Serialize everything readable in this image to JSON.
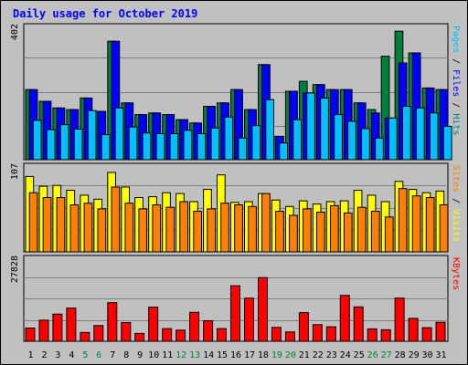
{
  "chart_data": [
    {
      "type": "bar",
      "panel": "pages-files-hits",
      "title": "Daily usage for October 2019",
      "ymax_label": "402",
      "ylim": [
        0,
        402
      ],
      "categories": [
        "1",
        "2",
        "3",
        "4",
        "5",
        "6",
        "7",
        "8",
        "9",
        "10",
        "11",
        "12",
        "13",
        "14",
        "15",
        "16",
        "17",
        "18",
        "19",
        "20",
        "21",
        "22",
        "23",
        "24",
        "25",
        "26",
        "27",
        "28",
        "29",
        "30",
        "31"
      ],
      "weekend_days": [
        "5",
        "6",
        "12",
        "13",
        "19",
        "20",
        "26",
        "27"
      ],
      "side_label_parts": [
        "Pages",
        " / ",
        "Files",
        " / ",
        "Hits"
      ],
      "series": [
        {
          "name": "Hits",
          "color": "#008040",
          "values": [
            210,
            175,
            155,
            150,
            185,
            145,
            355,
            170,
            135,
            140,
            135,
            120,
            110,
            160,
            170,
            210,
            150,
            285,
            70,
            205,
            235,
            225,
            210,
            210,
            170,
            150,
            310,
            385,
            320,
            215,
            210
          ]
        },
        {
          "name": "Files",
          "color": "#0000ff",
          "values": [
            210,
            175,
            155,
            150,
            185,
            145,
            355,
            170,
            135,
            140,
            135,
            120,
            110,
            160,
            170,
            210,
            150,
            285,
            70,
            205,
            200,
            225,
            210,
            210,
            170,
            140,
            125,
            290,
            320,
            215,
            210
          ]
        },
        {
          "name": "Pages",
          "color": "#00c0ff",
          "values": [
            118,
            90,
            105,
            92,
            147,
            75,
            155,
            98,
            80,
            78,
            78,
            88,
            78,
            95,
            128,
            65,
            102,
            180,
            50,
            120,
            200,
            185,
            135,
            115,
            93,
            65,
            125,
            160,
            155,
            140,
            100
          ]
        }
      ]
    },
    {
      "type": "bar",
      "panel": "sites-visits",
      "ymax_label": "107",
      "ylim": [
        0,
        107
      ],
      "side_label_parts": [
        "Sites",
        " / ",
        "Visits"
      ],
      "series": [
        {
          "name": "Visits",
          "color": "#ffff00",
          "values": [
            93,
            81,
            82,
            76,
            70,
            65,
            98,
            80,
            67,
            68,
            73,
            72,
            62,
            77,
            95,
            61,
            62,
            72,
            64,
            56,
            63,
            59,
            62,
            63,
            76,
            70,
            62,
            87,
            77,
            73,
            75
          ]
        },
        {
          "name": "Sites",
          "color": "#ff8000",
          "values": [
            73,
            67,
            67,
            58,
            60,
            53,
            80,
            60,
            53,
            58,
            55,
            62,
            50,
            53,
            60,
            58,
            56,
            72,
            50,
            45,
            53,
            49,
            57,
            48,
            55,
            50,
            43,
            78,
            69,
            67,
            58
          ]
        }
      ]
    },
    {
      "type": "bar",
      "panel": "kbytes",
      "ymax_label": "27828",
      "ylim": [
        0,
        27828
      ],
      "side_label_parts": [
        "KBytes"
      ],
      "series": [
        {
          "name": "KBytes",
          "color": "#ff0000",
          "values": [
            4400,
            7000,
            9000,
            11000,
            2900,
            5200,
            12800,
            6200,
            2600,
            11300,
            4200,
            3700,
            9600,
            6800,
            4200,
            18400,
            14300,
            21100,
            4600,
            3100,
            9500,
            5500,
            4800,
            15200,
            11400,
            4100,
            3800,
            14300,
            7600,
            4500,
            6300
          ]
        }
      ]
    }
  ]
}
